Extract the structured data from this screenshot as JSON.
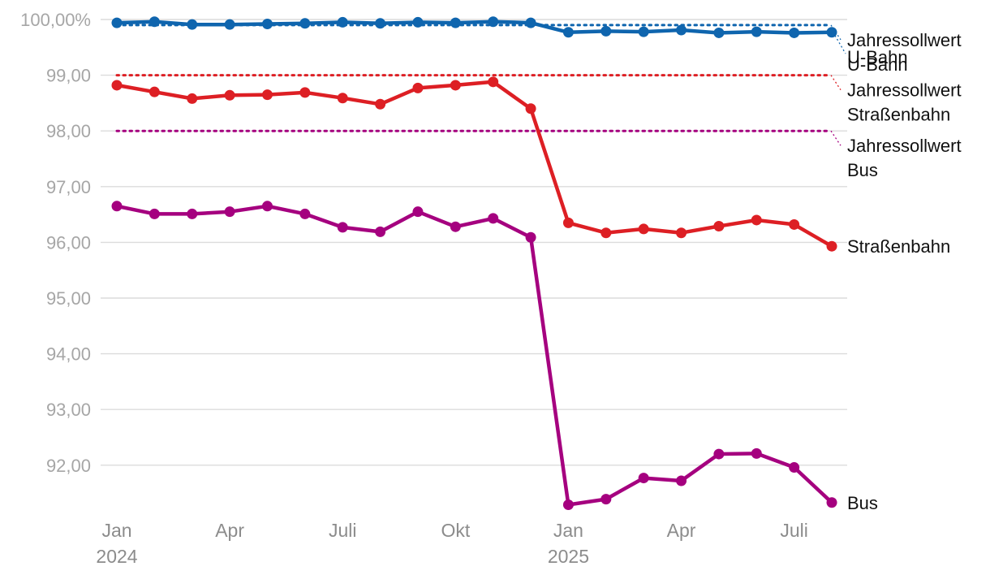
{
  "chart_data": {
    "type": "line",
    "title": "",
    "xlabel": "",
    "ylabel": "",
    "ylim": [
      91.3,
      100.1
    ],
    "yticks": [
      {
        "value": 100,
        "label": "100,00%"
      },
      {
        "value": 99,
        "label": "99,00"
      },
      {
        "value": 98,
        "label": "98,00"
      },
      {
        "value": 97,
        "label": "97,00"
      },
      {
        "value": 96,
        "label": "96,00"
      },
      {
        "value": 95,
        "label": "95,00"
      },
      {
        "value": 94,
        "label": "94,00"
      },
      {
        "value": 93,
        "label": "93,00"
      },
      {
        "value": 92,
        "label": "92,00"
      }
    ],
    "xticks": [
      {
        "index": 0,
        "label": "Jan",
        "sub": "2024"
      },
      {
        "index": 3,
        "label": "Apr",
        "sub": ""
      },
      {
        "index": 6,
        "label": "Juli",
        "sub": ""
      },
      {
        "index": 9,
        "label": "Okt",
        "sub": ""
      },
      {
        "index": 12,
        "label": "Jan",
        "sub": "2025"
      },
      {
        "index": 15,
        "label": "Apr",
        "sub": ""
      },
      {
        "index": 18,
        "label": "Juli",
        "sub": ""
      }
    ],
    "categories": [
      "Jan 2024",
      "Feb 2024",
      "Mär 2024",
      "Apr 2024",
      "Mai 2024",
      "Jun 2024",
      "Jul 2024",
      "Aug 2024",
      "Sep 2024",
      "Okt 2024",
      "Nov 2024",
      "Dez 2024",
      "Jan 2025",
      "Feb 2025",
      "Mär 2025",
      "Apr 2025",
      "Mai 2025",
      "Jun 2025",
      "Jul 2025",
      "Aug 2025"
    ],
    "series": [
      {
        "name": "U-Bahn",
        "label": "U-Bahn",
        "color": "#0f65ae",
        "values": [
          99.94,
          99.96,
          99.91,
          99.91,
          99.92,
          99.93,
          99.95,
          99.93,
          99.95,
          99.94,
          99.96,
          99.94,
          99.77,
          99.79,
          99.78,
          99.81,
          99.76,
          99.78,
          99.76,
          99.77
        ]
      },
      {
        "name": "Straßenbahn",
        "label": "Straßenbahn",
        "color": "#dd1f24",
        "values": [
          98.82,
          98.7,
          98.58,
          98.64,
          98.65,
          98.69,
          98.59,
          98.48,
          98.77,
          98.82,
          98.88,
          98.4,
          96.35,
          96.17,
          96.24,
          96.17,
          96.29,
          96.4,
          96.32,
          95.93
        ]
      },
      {
        "name": "Bus",
        "label": "Bus",
        "color": "#a5007f",
        "values": [
          96.65,
          96.51,
          96.51,
          96.55,
          96.65,
          96.51,
          96.27,
          96.19,
          96.55,
          96.28,
          96.43,
          96.09,
          91.29,
          91.39,
          91.77,
          91.72,
          92.2,
          92.21,
          91.96,
          91.33
        ]
      }
    ],
    "targets": [
      {
        "name": "Jahressollwert U-Bahn",
        "value": 99.9,
        "color": "#0f65ae",
        "label_line1": "Jahressollwert",
        "label_line2": "U-Bahn"
      },
      {
        "name": "Jahressollwert Straßenbahn",
        "value": 99.0,
        "color": "#dd1f24",
        "label_line1": "Jahressollwert",
        "label_line2": "Straßenbahn"
      },
      {
        "name": "Jahressollwert Bus",
        "value": 98.0,
        "color": "#a5007f",
        "label_line1": "Jahressollwert",
        "label_line2": "Bus"
      }
    ]
  }
}
